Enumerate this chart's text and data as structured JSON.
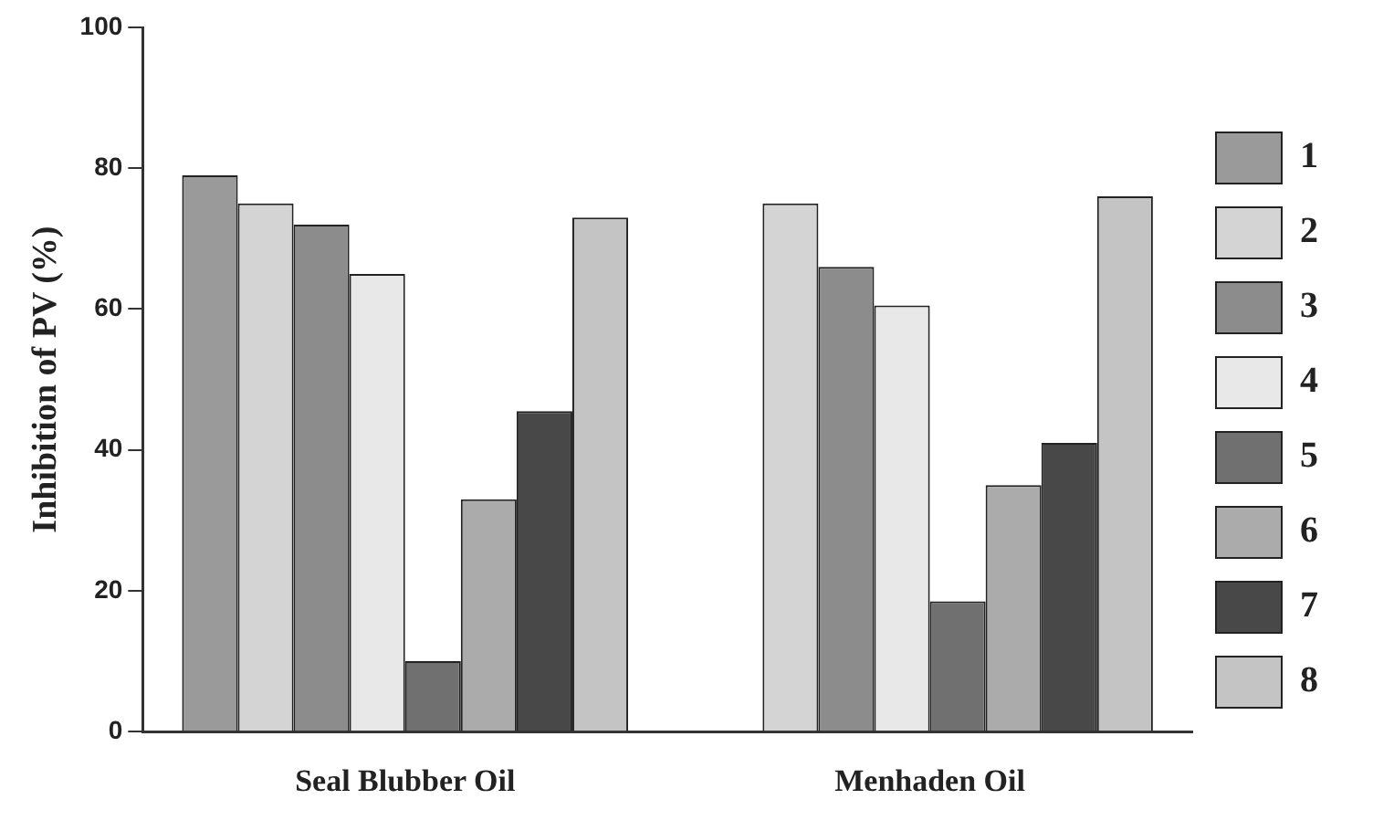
{
  "chart_data": {
    "type": "bar",
    "ylabel": "Inhibition of PV (%)",
    "categories": [
      "Seal Blubber Oil",
      "Menhaden Oil"
    ],
    "series": [
      {
        "name": "1",
        "color": "#9a9a9a",
        "values": [
          79,
          null
        ]
      },
      {
        "name": "2",
        "color": "#d4d4d4",
        "values": [
          75,
          75
        ]
      },
      {
        "name": "3",
        "color": "#8c8c8c",
        "values": [
          72,
          66
        ]
      },
      {
        "name": "4",
        "color": "#e8e8e8",
        "values": [
          65,
          60.5
        ]
      },
      {
        "name": "5",
        "color": "#707070",
        "values": [
          10,
          18.5
        ]
      },
      {
        "name": "6",
        "color": "#ababab",
        "values": [
          33,
          35
        ]
      },
      {
        "name": "7",
        "color": "#484848",
        "values": [
          45.5,
          41
        ]
      },
      {
        "name": "8",
        "color": "#c4c4c4",
        "values": [
          73,
          76
        ]
      }
    ],
    "ylim": [
      0,
      100
    ],
    "yticks": [
      0,
      20,
      40,
      60,
      80,
      100
    ],
    "grid": false,
    "legend": "right"
  }
}
